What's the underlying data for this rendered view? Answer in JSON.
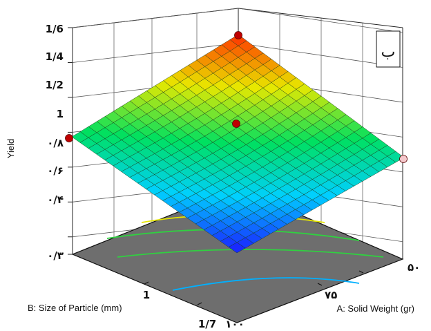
{
  "chart_data": {
    "type": "surface3d",
    "title": "",
    "panel_label": "ب",
    "zlabel": "Yield",
    "xlabel": "A: Solid Weight (gr)",
    "ylabel": "B: Size of Particle (mm)",
    "z_ticks": [
      "۰/۳",
      "۰/۴",
      "۰/۶",
      "۰/۸",
      "1",
      "1/2",
      "1/4",
      "1/6"
    ],
    "x_ticks": [
      "۵۰",
      "۷۵",
      "۱۰۰"
    ],
    "y_ticks": [
      "1",
      "1/7"
    ],
    "x_range": [
      50,
      100
    ],
    "y_range": [
      0.3,
      1.7
    ],
    "z_range": [
      0.3,
      1.6
    ],
    "surface": {
      "corners": {
        "back_top": 1.58,
        "left": 0.8,
        "right": 0.7,
        "front_bottom": 0.1
      },
      "center": 0.95,
      "grid_cells": 20
    },
    "design_points": [
      {
        "location": "back_top",
        "value": 1.58,
        "color": "#c00000"
      },
      {
        "location": "left",
        "value": 0.8,
        "color": "#c00000"
      },
      {
        "location": "center",
        "value": 0.95,
        "color": "#c00000"
      },
      {
        "location": "right",
        "value": 0.7,
        "color": "#f4c8cc"
      }
    ],
    "colormap": [
      "#1a1aff",
      "#00d0ff",
      "#00e060",
      "#e8e800",
      "#ff3000"
    ],
    "floor_contours": [
      "#e6e600",
      "#30d040",
      "#30d040",
      "#00b0ff"
    ]
  }
}
